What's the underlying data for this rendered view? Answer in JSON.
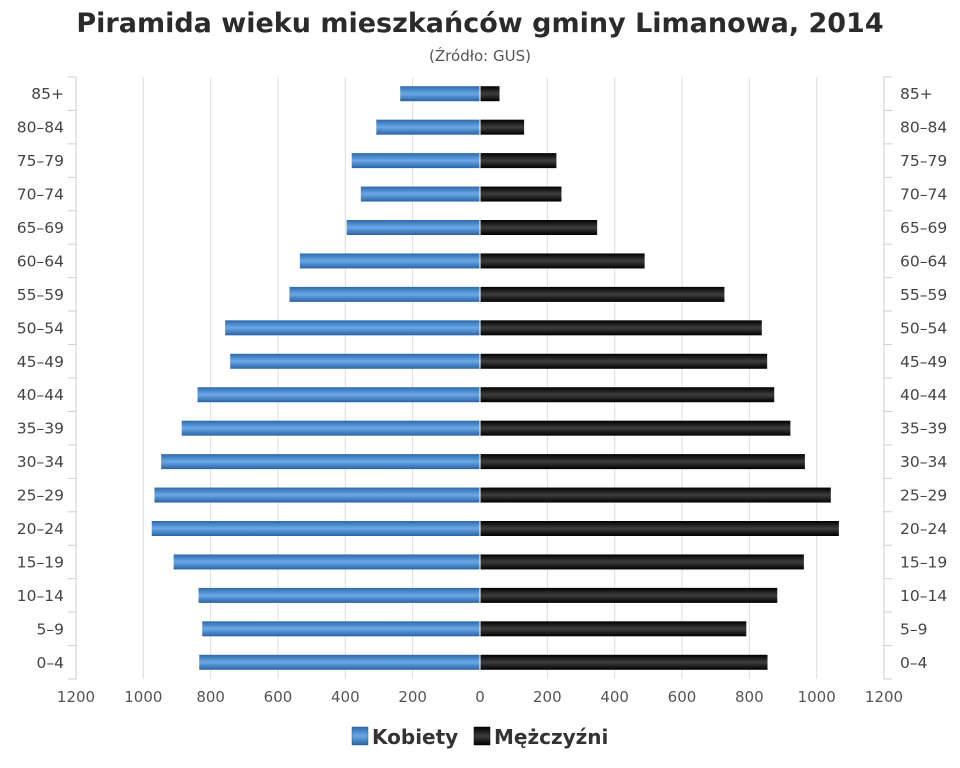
{
  "chart_data": {
    "type": "bar",
    "orientation": "horizontal",
    "title": "Piramida wieku mieszkańców gminy Limanowa, 2014",
    "subtitle": "(Źródło: GUS)",
    "categories": [
      "0–4",
      "5–9",
      "10–14",
      "15–19",
      "20–24",
      "25–29",
      "30–34",
      "35–39",
      "40–44",
      "45–49",
      "50–54",
      "55–59",
      "60–64",
      "65–69",
      "70–74",
      "75–79",
      "80–84",
      "85+"
    ],
    "series": [
      {
        "name": "Kobiety",
        "color": "#3d7dc1",
        "side": "left",
        "values": [
          834,
          825,
          836,
          910,
          975,
          967,
          947,
          886,
          839,
          742,
          757,
          566,
          535,
          396,
          354,
          381,
          308,
          237
        ]
      },
      {
        "name": "Mężczyźni",
        "color": "#1a1a1a",
        "side": "right",
        "values": [
          854,
          791,
          883,
          962,
          1066,
          1042,
          965,
          922,
          874,
          853,
          837,
          726,
          489,
          348,
          242,
          227,
          131,
          58
        ]
      }
    ],
    "xlim": [
      -1200,
      1200
    ],
    "xticks": [
      "1200",
      "1000",
      "800",
      "600",
      "400",
      "200",
      "0",
      "200",
      "400",
      "600",
      "800",
      "1000",
      "1200"
    ],
    "grid": true,
    "legend_position": "bottom"
  }
}
